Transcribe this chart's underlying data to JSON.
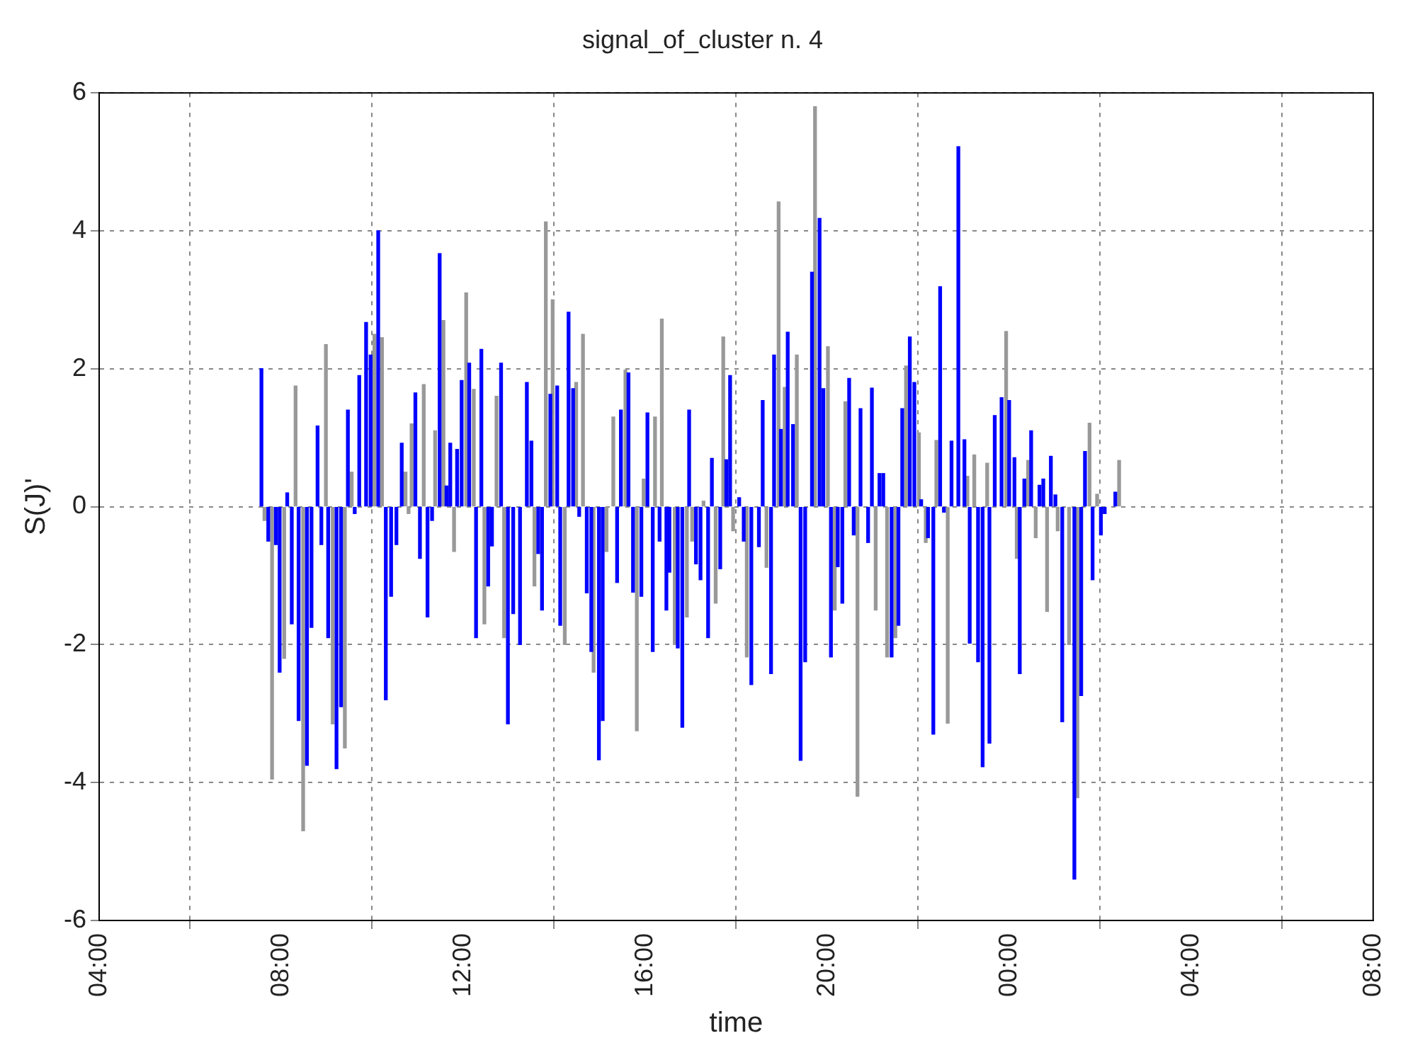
{
  "chart_data": {
    "type": "bar",
    "title": "signal_of_cluster n. 4",
    "xlabel": "time",
    "ylabel": "S(J)'",
    "xlim": [
      "2000-01-01T04:00",
      "2000-01-02T08:00"
    ],
    "xticks": [
      {
        "value": "2000-01-01T04:00",
        "label": "04:00"
      },
      {
        "value": "2000-01-01T08:00",
        "label": "08:00"
      },
      {
        "value": "2000-01-01T12:00",
        "label": "12:00"
      },
      {
        "value": "2000-01-01T16:00",
        "label": "16:00"
      },
      {
        "value": "2000-01-01T20:00",
        "label": "20:00"
      },
      {
        "value": "2000-01-02T00:00",
        "label": "00:00"
      },
      {
        "value": "2000-01-02T04:00",
        "label": "04:00"
      },
      {
        "value": "2000-01-02T08:00",
        "label": "08:00"
      }
    ],
    "ylim": [
      -6,
      6
    ],
    "yticks": [
      -6,
      -4,
      -2,
      0,
      2,
      4,
      6
    ],
    "grid": true,
    "legend": false,
    "series": [
      {
        "color": "#0000ff",
        "x": [
          "2000-01-01T07:34",
          "2000-01-01T07:43",
          "2000-01-01T07:53",
          "2000-01-01T07:58",
          "2000-01-01T08:08",
          "2000-01-01T08:14",
          "2000-01-01T08:23",
          "2000-01-01T08:34",
          "2000-01-01T08:40",
          "2000-01-01T08:48",
          "2000-01-01T08:53",
          "2000-01-01T09:02",
          "2000-01-01T09:13",
          "2000-01-01T09:19",
          "2000-01-01T09:28",
          "2000-01-01T09:37",
          "2000-01-01T09:43",
          "2000-01-01T09:52",
          "2000-01-01T09:58",
          "2000-01-01T10:08",
          "2000-01-01T10:18",
          "2000-01-01T10:25",
          "2000-01-01T10:32",
          "2000-01-01T10:39",
          "2000-01-01T10:57",
          "2000-01-01T11:03",
          "2000-01-01T11:13",
          "2000-01-01T11:19",
          "2000-01-01T11:29",
          "2000-01-01T11:38",
          "2000-01-01T11:43",
          "2000-01-01T11:52",
          "2000-01-01T11:58",
          "2000-01-01T12:08",
          "2000-01-01T12:17",
          "2000-01-01T12:24",
          "2000-01-01T12:33",
          "2000-01-01T12:38",
          "2000-01-01T12:50",
          "2000-01-01T12:59",
          "2000-01-01T13:06",
          "2000-01-01T13:15",
          "2000-01-01T13:24",
          "2000-01-01T13:30",
          "2000-01-01T13:39",
          "2000-01-01T13:44",
          "2000-01-01T13:55",
          "2000-01-01T14:04",
          "2000-01-01T14:08",
          "2000-01-01T14:19",
          "2000-01-01T14:25",
          "2000-01-01T14:33",
          "2000-01-01T14:43",
          "2000-01-01T14:49",
          "2000-01-01T14:59",
          "2000-01-01T15:04",
          "2000-01-01T15:23",
          "2000-01-01T15:28",
          "2000-01-01T15:38",
          "2000-01-01T15:44",
          "2000-01-01T15:55",
          "2000-01-01T16:03",
          "2000-01-01T16:10",
          "2000-01-01T16:19",
          "2000-01-01T16:28",
          "2000-01-01T16:32",
          "2000-01-01T16:43",
          "2000-01-01T16:49",
          "2000-01-01T16:58",
          "2000-01-01T17:07",
          "2000-01-01T17:13",
          "2000-01-01T17:23",
          "2000-01-01T17:28",
          "2000-01-01T17:39",
          "2000-01-01T17:47",
          "2000-01-01T17:52",
          "2000-01-01T18:04",
          "2000-01-01T18:10",
          "2000-01-01T18:20",
          "2000-01-01T18:30",
          "2000-01-01T18:35",
          "2000-01-01T18:46",
          "2000-01-01T18:50",
          "2000-01-01T18:59",
          "2000-01-01T19:08",
          "2000-01-01T19:15",
          "2000-01-01T19:25",
          "2000-01-01T19:31",
          "2000-01-01T19:40",
          "2000-01-01T19:50",
          "2000-01-01T19:55",
          "2000-01-01T20:05",
          "2000-01-01T20:14",
          "2000-01-01T20:20",
          "2000-01-01T20:29",
          "2000-01-01T20:35",
          "2000-01-01T20:44",
          "2000-01-01T20:54",
          "2000-01-01T20:59",
          "2000-01-01T21:09",
          "2000-01-01T21:14",
          "2000-01-01T21:25",
          "2000-01-01T21:34",
          "2000-01-01T21:39",
          "2000-01-01T21:49",
          "2000-01-01T21:55",
          "2000-01-01T22:04",
          "2000-01-01T22:13",
          "2000-01-01T22:20",
          "2000-01-01T22:29",
          "2000-01-01T22:34",
          "2000-01-01T22:44",
          "2000-01-01T22:53",
          "2000-01-01T23:01",
          "2000-01-01T23:08",
          "2000-01-01T23:19",
          "2000-01-01T23:25",
          "2000-01-01T23:34",
          "2000-01-01T23:41",
          "2000-01-01T23:50",
          "2000-01-02T00:00",
          "2000-01-02T00:07",
          "2000-01-02T00:14",
          "2000-01-02T00:20",
          "2000-01-02T00:29",
          "2000-01-02T00:40",
          "2000-01-02T00:45",
          "2000-01-02T00:55",
          "2000-01-02T01:01",
          "2000-01-02T01:10",
          "2000-01-02T01:26",
          "2000-01-02T01:35",
          "2000-01-02T01:40",
          "2000-01-02T01:50",
          "2000-01-02T02:01",
          "2000-01-02T02:06",
          "2000-01-02T02:20"
        ],
        "values": [
          2.0,
          -0.5,
          -0.55,
          -2.4,
          0.2,
          -1.7,
          -3.1,
          -3.75,
          -1.75,
          1.17,
          -0.55,
          -1.9,
          -3.8,
          -2.9,
          1.4,
          -0.1,
          1.9,
          2.67,
          2.2,
          4.0,
          -2.8,
          -1.3,
          -0.55,
          0.92,
          1.65,
          -0.75,
          -1.6,
          -0.2,
          3.67,
          0.3,
          0.92,
          0.83,
          1.83,
          2.08,
          -1.9,
          2.28,
          -1.15,
          -0.57,
          2.08,
          -3.15,
          -1.55,
          -2.0,
          1.8,
          0.95,
          -0.68,
          -1.5,
          1.63,
          1.75,
          -1.72,
          2.82,
          1.71,
          -0.14,
          -1.25,
          -2.1,
          -3.67,
          -3.1,
          -1.1,
          1.4,
          1.94,
          -1.24,
          -1.3,
          1.36,
          -2.1,
          -0.5,
          -1.5,
          -0.95,
          -2.05,
          -3.2,
          1.4,
          -0.83,
          -1.06,
          -1.9,
          0.7,
          -0.9,
          0.68,
          1.9,
          0.13,
          -0.5,
          -2.58,
          -0.58,
          1.54,
          -2.42,
          2.2,
          1.12,
          2.53,
          1.19,
          -3.68,
          -2.25,
          3.4,
          4.18,
          1.71,
          -2.18,
          -0.87,
          -1.4,
          1.86,
          -0.41,
          1.42,
          -0.52,
          1.72,
          0.48,
          0.48,
          -2.18,
          -1.72,
          1.42,
          2.46,
          1.8,
          0.1,
          -0.45,
          -3.3,
          3.19,
          -0.08,
          0.95,
          5.22,
          0.97,
          -1.98,
          -2.25,
          -3.77,
          -3.43,
          1.32,
          1.58,
          1.54,
          0.71,
          -2.42,
          0.4,
          1.1,
          0.31,
          0.4,
          0.73,
          0.17,
          -3.12,
          -5.4,
          -2.74,
          0.8,
          -1.06,
          -0.41,
          -0.1,
          0.21
        ]
      },
      {
        "color": "#999999",
        "x": [
          "2000-01-01T07:38",
          "2000-01-01T07:48",
          "2000-01-01T08:04",
          "2000-01-01T08:19",
          "2000-01-01T08:29",
          "2000-01-01T08:59",
          "2000-01-01T09:08",
          "2000-01-01T09:24",
          "2000-01-01T09:33",
          "2000-01-01T10:03",
          "2000-01-01T10:13",
          "2000-01-01T10:44",
          "2000-01-01T10:48",
          "2000-01-01T10:52",
          "2000-01-01T11:08",
          "2000-01-01T11:23",
          "2000-01-01T11:34",
          "2000-01-01T11:48",
          "2000-01-01T12:04",
          "2000-01-01T12:14",
          "2000-01-01T12:28",
          "2000-01-01T12:44",
          "2000-01-01T12:54",
          "2000-01-01T13:34",
          "2000-01-01T13:49",
          "2000-01-01T13:58",
          "2000-01-01T14:14",
          "2000-01-01T14:29",
          "2000-01-01T14:38",
          "2000-01-01T14:52",
          "2000-01-01T15:09",
          "2000-01-01T15:18",
          "2000-01-01T15:34",
          "2000-01-01T15:49",
          "2000-01-01T15:58",
          "2000-01-01T16:13",
          "2000-01-01T16:22",
          "2000-01-01T16:39",
          "2000-01-01T16:55",
          "2000-01-01T17:02",
          "2000-01-01T17:17",
          "2000-01-01T17:33",
          "2000-01-01T17:43",
          "2000-01-01T17:56",
          "2000-01-01T18:14",
          "2000-01-01T18:40",
          "2000-01-01T18:56",
          "2000-01-01T19:04",
          "2000-01-01T19:20",
          "2000-01-01T19:44",
          "2000-01-01T20:01",
          "2000-01-01T20:10",
          "2000-01-01T20:24",
          "2000-01-01T20:40",
          "2000-01-01T21:04",
          "2000-01-01T21:19",
          "2000-01-01T21:30",
          "2000-01-01T21:44",
          "2000-01-01T22:01",
          "2000-01-01T22:10",
          "2000-01-01T22:24",
          "2000-01-01T22:39",
          "2000-01-01T23:05",
          "2000-01-01T23:14",
          "2000-01-01T23:31",
          "2000-01-01T23:56",
          "2000-01-02T00:10",
          "2000-01-02T00:25",
          "2000-01-02T00:35",
          "2000-01-02T00:50",
          "2000-01-02T01:04",
          "2000-01-02T01:19",
          "2000-01-02T01:30",
          "2000-01-02T01:46",
          "2000-01-02T01:56",
          "2000-01-02T02:25"
        ],
        "values": [
          -0.2,
          -3.95,
          -2.2,
          1.75,
          -4.7,
          2.35,
          -3.15,
          -3.5,
          0.5,
          2.5,
          2.45,
          0.5,
          -0.1,
          1.2,
          1.77,
          1.1,
          2.7,
          -0.65,
          3.1,
          1.7,
          -1.7,
          1.6,
          -1.9,
          -1.15,
          4.13,
          3.0,
          -2.0,
          1.8,
          2.5,
          -2.4,
          -0.65,
          1.3,
          1.98,
          -3.25,
          0.4,
          1.3,
          2.72,
          -2.0,
          -1.6,
          -0.5,
          0.08,
          -1.4,
          2.46,
          -0.35,
          -2.18,
          -0.88,
          4.42,
          1.73,
          2.2,
          5.8,
          2.32,
          -1.5,
          1.52,
          -4.2,
          -1.5,
          -2.18,
          -1.9,
          2.04,
          1.07,
          -0.52,
          0.96,
          -3.14,
          0.44,
          0.75,
          0.63,
          2.54,
          -0.75,
          0.67,
          -0.45,
          -1.52,
          -0.35,
          -2.0,
          -4.22,
          1.21,
          0.18,
          0.67
        ]
      }
    ]
  }
}
